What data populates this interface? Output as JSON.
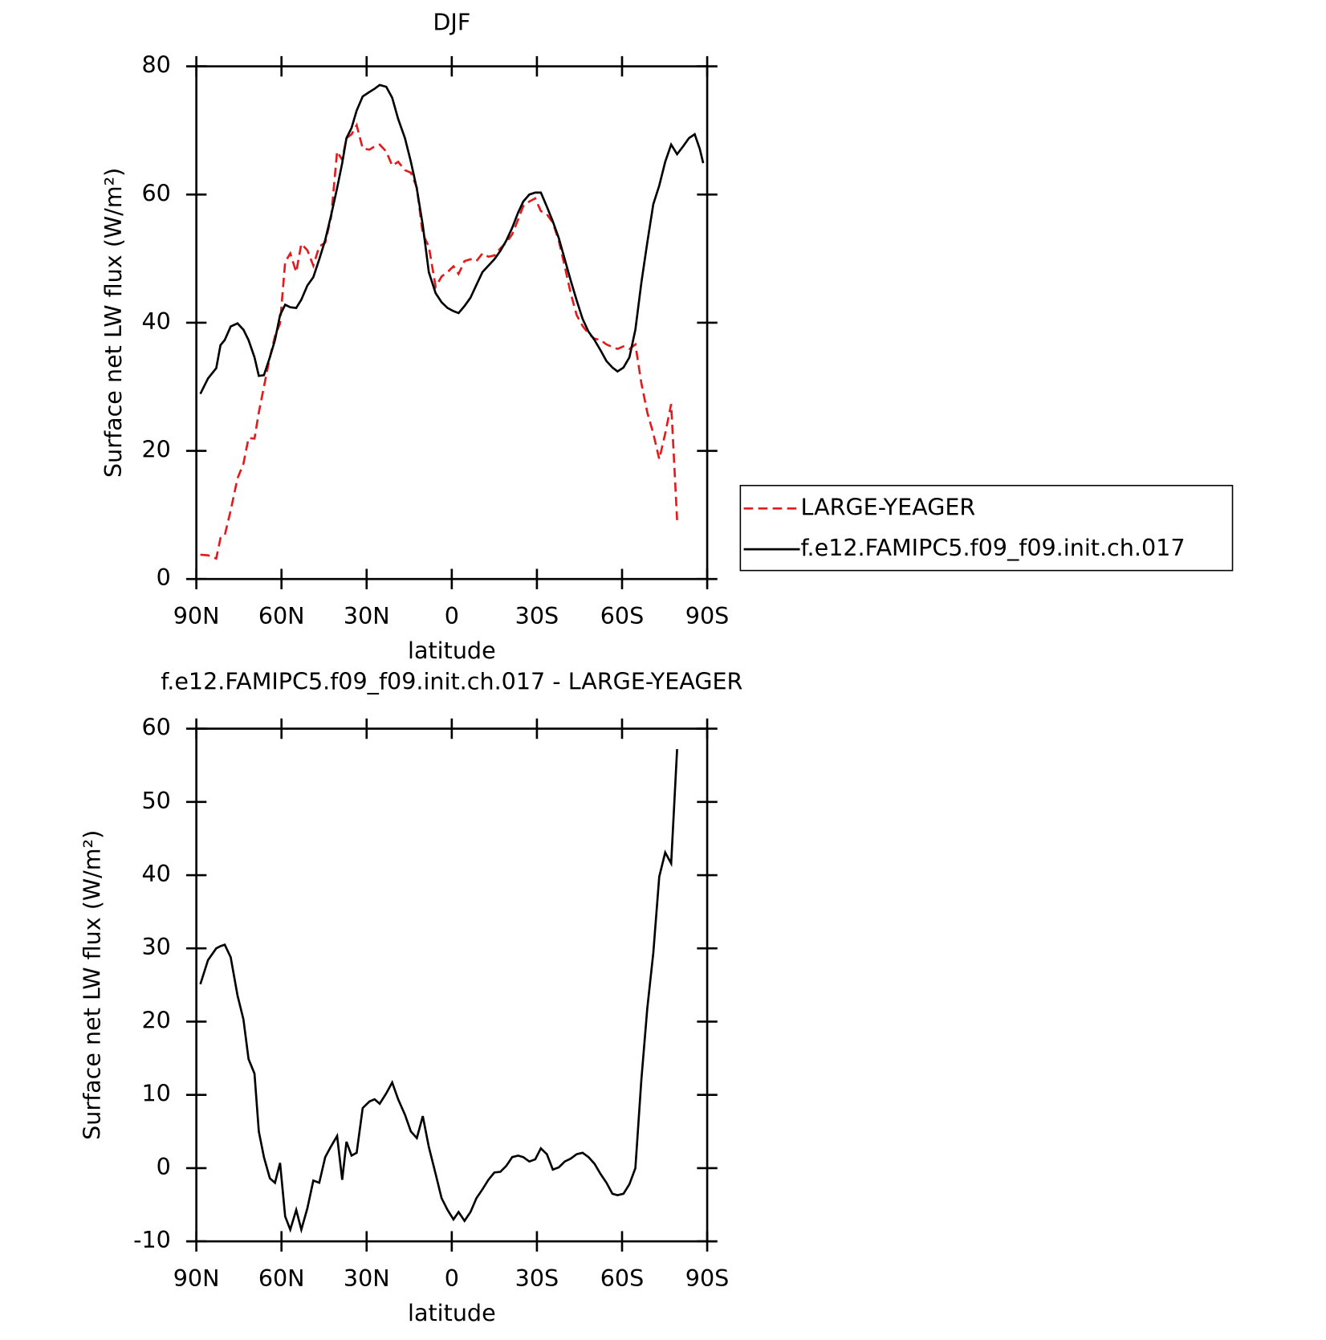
{
  "chart_data": [
    {
      "type": "line",
      "title": "DJF",
      "ylabel": "Surface net LW flux (W/m²)",
      "xlabel": "latitude",
      "x": [
        88.6,
        85.9,
        83.0,
        81.5,
        80.0,
        77.9,
        75.5,
        73.4,
        71.6,
        69.5,
        68.0,
        66.2,
        64.1,
        62.3,
        60.5,
        58.7,
        56.9,
        54.8,
        53.0,
        50.9,
        48.8,
        46.7,
        44.6,
        42.5,
        40.4,
        38.6,
        37.1,
        35.3,
        33.5,
        31.4,
        29.0,
        27.2,
        25.4,
        23.1,
        21.0,
        18.9,
        16.5,
        14.4,
        12.3,
        10.2,
        8.1,
        5.7,
        3.6,
        1.5,
        -0.6,
        -2.4,
        -4.5,
        -6.6,
        -8.7,
        -10.8,
        -12.9,
        -15.0,
        -17.1,
        -19.2,
        -21.3,
        -23.4,
        -25.2,
        -27.3,
        -29.4,
        -31.4,
        -33.5,
        -35.6,
        -37.7,
        -39.8,
        -41.9,
        -44.0,
        -46.1,
        -48.2,
        -50.3,
        -52.4,
        -54.5,
        -56.6,
        -58.4,
        -60.5,
        -62.6,
        -64.7,
        -66.8,
        -68.9,
        -71.0,
        -73.1,
        -75.2,
        -77.3,
        -79.4,
        -81.5,
        -83.6,
        -85.6,
        -87.4,
        -88.6
      ],
      "series": [
        {
          "name": "LARGE-YEAGER",
          "color": "#e41a1c",
          "dash": true,
          "values": [
            3.8,
            3.7,
            3.2,
            6.4,
            6.8,
            10.7,
            15.7,
            18,
            22,
            21.9,
            26,
            30,
            34.6,
            37.9,
            39.9,
            49.5,
            50.8,
            47.9,
            52.3,
            51.3,
            48.9,
            51.9,
            52.5,
            56.5,
            66.7,
            65.4,
            68.8,
            69.4,
            70.8,
            67.2,
            67,
            67.5,
            67.8,
            66.7,
            64.5,
            65.1,
            63.8,
            63.4,
            61.1,
            53.8,
            51.9,
            45.6,
            47.2,
            47.9,
            48.8,
            47.6,
            49.6,
            49.9,
            49.6,
            50.8,
            50.3,
            50.5,
            51.6,
            52.5,
            53.8,
            56.1,
            58.2,
            58.9,
            59.4,
            57.4,
            56.9,
            55.6,
            52.8,
            48.8,
            44.6,
            41.2,
            39.5,
            38.3,
            37.5,
            37.3,
            36.6,
            36.2,
            35.9,
            36.3,
            35.9,
            36.6,
            30.6,
            26,
            22.7,
            18.7,
            22.7,
            27.3,
            9.2,
            null,
            null,
            null,
            null,
            null
          ]
        },
        {
          "name": "f.e12.FAMIPC5.f09_f09.init.ch.017",
          "color": "#000000",
          "dash": false,
          "values": [
            28.9,
            31.3,
            32.9,
            36.5,
            37.3,
            39.4,
            39.9,
            38.9,
            37.3,
            34.6,
            31.7,
            31.8,
            34.6,
            37.3,
            41.2,
            42.8,
            42.4,
            42.3,
            43.6,
            45.8,
            47.1,
            49.9,
            52.9,
            56.8,
            61,
            64.9,
            68.8,
            70.4,
            73.1,
            75.3,
            76,
            76.5,
            77.1,
            76.8,
            75.1,
            71.8,
            68.8,
            65.1,
            60.9,
            55.2,
            47.9,
            44.6,
            43.2,
            42.3,
            41.8,
            41.5,
            42.6,
            43.9,
            45.9,
            47.9,
            48.9,
            49.9,
            51.2,
            52.8,
            54.8,
            57.2,
            58.9,
            60,
            60.3,
            60.3,
            58.1,
            55.8,
            53.2,
            49.9,
            46.6,
            43.5,
            40.6,
            38.6,
            37.3,
            35.7,
            34,
            33,
            32.4,
            33,
            34.6,
            38.9,
            46.2,
            52.5,
            58.5,
            61.4,
            65.1,
            67.8,
            66.3,
            67.5,
            68.8,
            69.4,
            67.1,
            64.9
          ]
        }
      ],
      "xlim": [
        90,
        -90
      ],
      "xticks": [
        {
          "value": 90,
          "label": "90N"
        },
        {
          "value": 60,
          "label": "60N"
        },
        {
          "value": 30,
          "label": "30N"
        },
        0,
        {
          "value": -30,
          "label": "30S"
        },
        {
          "value": -60,
          "label": "60S"
        },
        {
          "value": -90,
          "label": "90S"
        }
      ],
      "ylim": [
        0,
        80
      ],
      "yticks": [
        0,
        20,
        40,
        60,
        80
      ],
      "legend": "right"
    },
    {
      "type": "line",
      "title": "f.e12.FAMIPC5.f09_f09.init.ch.017 - LARGE-YEAGER",
      "ylabel": "Surface net LW flux (W/m²)",
      "xlabel": "latitude",
      "x": [
        88.6,
        85.9,
        83.0,
        81.5,
        80.0,
        77.9,
        75.5,
        73.4,
        71.6,
        69.5,
        68.0,
        66.2,
        64.1,
        62.3,
        60.5,
        58.7,
        56.9,
        54.8,
        53.0,
        50.9,
        48.8,
        46.7,
        44.6,
        42.5,
        40.4,
        38.6,
        37.1,
        35.3,
        33.5,
        31.4,
        29.0,
        27.2,
        25.4,
        23.1,
        21.0,
        18.9,
        16.5,
        14.4,
        12.3,
        10.2,
        8.1,
        5.7,
        3.6,
        1.5,
        -0.6,
        -2.4,
        -4.5,
        -6.6,
        -8.7,
        -10.8,
        -12.9,
        -15.0,
        -17.1,
        -19.2,
        -21.3,
        -23.4,
        -25.2,
        -27.3,
        -29.4,
        -31.4,
        -33.5,
        -35.6,
        -37.7,
        -39.8,
        -41.9,
        -44.0,
        -46.1,
        -48.2,
        -50.3,
        -52.4,
        -54.5,
        -56.6,
        -58.4,
        -60.5,
        -62.6,
        -64.7,
        -66.8,
        -68.9,
        -71.0,
        -73.1,
        -75.2,
        -77.3,
        -79.4,
        -81.5,
        -83.6,
        -85.6,
        -87.4,
        -88.6
      ],
      "color": "#000000",
      "values": [
        25.1,
        28.4,
        30,
        30.3,
        30.5,
        28.8,
        23.6,
        20.3,
        14.9,
        12.9,
        5,
        1.5,
        -1.4,
        -2,
        0.7,
        -6.6,
        -8.4,
        -5.7,
        -8.4,
        -5.5,
        -1.7,
        -2,
        1.5,
        3,
        4.4,
        -1.6,
        3.6,
        1.7,
        2.1,
        8.2,
        9.1,
        9.4,
        8.8,
        10.2,
        11.7,
        9.4,
        7.3,
        5,
        4.1,
        7.1,
        2.9,
        -0.8,
        -4.1,
        -5.7,
        -7,
        -6,
        -7.2,
        -6,
        -4.1,
        -2.9,
        -1.6,
        -0.6,
        -0.5,
        0.3,
        1.5,
        1.7,
        1.5,
        0.9,
        1.2,
        2.7,
        1.9,
        -0.2,
        0.1,
        0.9,
        1.3,
        1.9,
        2.1,
        1.5,
        0.6,
        -0.8,
        -2,
        -3.5,
        -3.7,
        -3.5,
        -2.2,
        0,
        12,
        21.8,
        29.4,
        39.8,
        43.1,
        41.6,
        57.2,
        null,
        null,
        null,
        null,
        null
      ],
      "xlim": [
        90,
        -90
      ],
      "xticks": [
        {
          "value": 90,
          "label": "90N"
        },
        {
          "value": 60,
          "label": "60N"
        },
        {
          "value": 30,
          "label": "30N"
        },
        0,
        {
          "value": -30,
          "label": "30S"
        },
        {
          "value": -60,
          "label": "60S"
        },
        {
          "value": -90,
          "label": "90S"
        }
      ],
      "ylim": [
        -10,
        60
      ],
      "yticks": [
        -10,
        0,
        10,
        20,
        30,
        40,
        50,
        60
      ]
    }
  ]
}
